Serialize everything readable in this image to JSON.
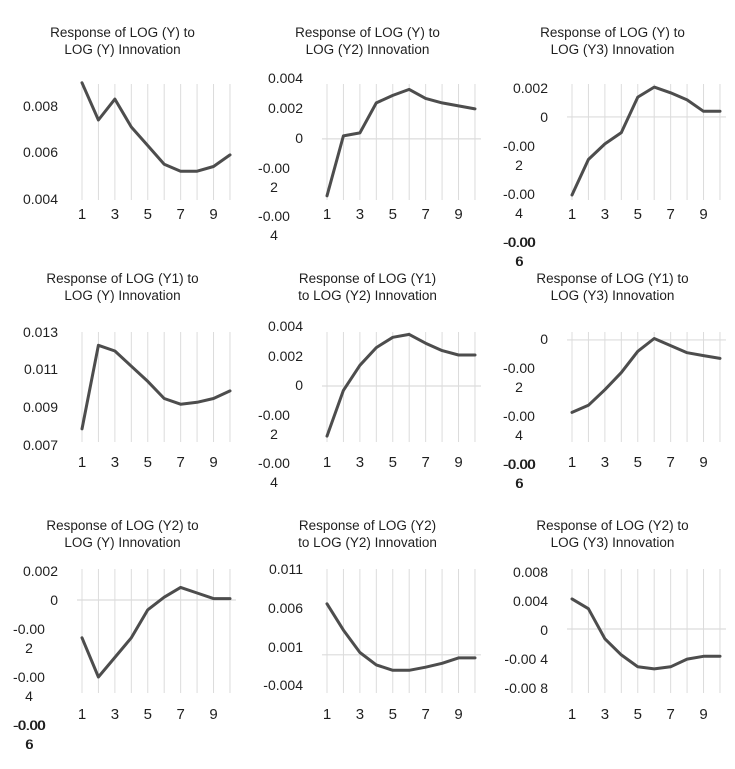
{
  "page": {
    "background": "#ffffff"
  },
  "style": {
    "line_color": "#4d4d4d",
    "grid_color": "#dcdcdc",
    "text_color": "#1f1f1f",
    "line_width": 3
  },
  "chart_data": [
    {
      "type": "line",
      "title": "Response of LOG (Y) to LOG (Y) Innovation",
      "title_display": "Response of LOG (Y) to\nLOG (Y) Innovation",
      "x": [
        1,
        2,
        3,
        4,
        5,
        6,
        7,
        8,
        9,
        10
      ],
      "values": [
        0.009,
        0.0074,
        0.0083,
        0.0071,
        0.0063,
        0.0055,
        0.0052,
        0.0052,
        0.0054,
        0.0059
      ],
      "ylim": [
        0.00396,
        0.00895
      ],
      "grid": "vertical",
      "x_tick_labels": [
        "1",
        "3",
        "5",
        "7",
        "9"
      ],
      "y_ticks": [
        {
          "display": "0.008",
          "value": 0.008
        },
        {
          "display": "0.006",
          "value": 0.006
        },
        {
          "display": "0.004",
          "value": 0.004
        }
      ]
    },
    {
      "type": "line",
      "title": "Response of LOG (Y) to LOG (Y2) Innovation",
      "title_display": "Response of LOG (Y) to\nLOG (Y2) Innovation",
      "x": [
        1,
        2,
        3,
        4,
        5,
        6,
        7,
        8,
        9,
        10
      ],
      "values": [
        -0.0038,
        0.0002,
        0.0004,
        0.0024,
        0.0029,
        0.0033,
        0.0027,
        0.0024,
        0.0022,
        0.002
      ],
      "ylim": [
        -0.00408,
        0.00366
      ],
      "grid": "vertical+zero",
      "x_tick_labels": [
        "1",
        "3",
        "5",
        "7",
        "9"
      ],
      "y_ticks": [
        {
          "display": "0.004",
          "value": 0.004
        },
        {
          "display": "0.002",
          "value": 0.002
        },
        {
          "display": "0",
          "value": 0
        },
        {
          "display": "-0.00\n2",
          "value": -0.002
        },
        {
          "display": "-0.00\n4",
          "value": -0.004
        }
      ]
    },
    {
      "type": "line",
      "title": "Response of LOG (Y) to LOG (Y3) Innovation",
      "title_display": "Response of LOG (Y) to\nLOG (Y3) Innovation",
      "x": [
        1,
        2,
        3,
        4,
        5,
        6,
        7,
        8,
        9,
        10
      ],
      "values": [
        -0.0055,
        -0.003,
        -0.0019,
        -0.0011,
        0.0014,
        0.0021,
        0.0017,
        0.0012,
        0.0004,
        0.0004
      ],
      "ylim": [
        -0.00585,
        0.00232
      ],
      "grid": "vertical+zero",
      "x_tick_labels": [
        "1",
        "3",
        "5",
        "7",
        "9"
      ],
      "y_ticks": [
        {
          "display": "0.002",
          "value": 0.002
        },
        {
          "display": "0",
          "value": 0
        },
        {
          "display": "-0.00\n2",
          "value": -0.002
        },
        {
          "display": "-0.00\n4",
          "value": -0.004
        },
        {
          "display": "-0.00\n6",
          "value": -0.006,
          "bold": true
        }
      ]
    },
    {
      "type": "line",
      "title": "Response of LOG (Y1) to LOG (Y) Innovation",
      "title_display": "Response of LOG (Y1) to\nLOG (Y) Innovation",
      "x": [
        1,
        2,
        3,
        4,
        5,
        6,
        7,
        8,
        9,
        10
      ],
      "values": [
        0.0079,
        0.0123,
        0.012,
        0.0112,
        0.0104,
        0.0095,
        0.0092,
        0.0093,
        0.0095,
        0.0099
      ],
      "ylim": [
        0.00721,
        0.013
      ],
      "grid": "vertical",
      "x_tick_labels": [
        "1",
        "3",
        "5",
        "7",
        "9"
      ],
      "y_ticks": [
        {
          "display": "0.013",
          "value": 0.013
        },
        {
          "display": "0.011",
          "value": 0.011
        },
        {
          "display": "0.009",
          "value": 0.009
        },
        {
          "display": "0.007",
          "value": 0.007
        }
      ]
    },
    {
      "type": "line",
      "title": "Response of LOG (Y1) to LOG (Y2) Innovation",
      "title_display": "Response of LOG (Y1)\nto LOG (Y2) Innovation",
      "x": [
        1,
        2,
        3,
        4,
        5,
        6,
        7,
        8,
        9,
        10
      ],
      "values": [
        -0.0034,
        -0.0003,
        0.0014,
        0.0026,
        0.0033,
        0.0035,
        0.0029,
        0.0024,
        0.0021,
        0.0021
      ],
      "ylim": [
        -0.0038,
        0.00366
      ],
      "grid": "vertical+zero",
      "x_tick_labels": [
        "1",
        "3",
        "5",
        "7",
        "9"
      ],
      "y_ticks": [
        {
          "display": "0.004",
          "value": 0.004
        },
        {
          "display": "0.002",
          "value": 0.002
        },
        {
          "display": "0",
          "value": 0
        },
        {
          "display": "-0.00\n2",
          "value": -0.002
        },
        {
          "display": "-0.00\n4",
          "value": -0.004
        }
      ]
    },
    {
      "type": "line",
      "title": "Response of LOG (Y1) to LOG (Y3) Innovation",
      "title_display": "Response of LOG (Y1) to\nLOG (Y3) Innovation",
      "x": [
        1,
        2,
        3,
        4,
        5,
        6,
        7,
        8,
        9,
        10
      ],
      "values": [
        -0.0051,
        -0.0046,
        -0.0035,
        -0.0023,
        -0.0008,
        0.0001,
        -0.0004,
        -0.0009,
        -0.0011,
        -0.0013
      ],
      "ylim": [
        -0.00718,
        0.00056
      ],
      "grid": "vertical+zero",
      "x_tick_labels": [
        "1",
        "3",
        "5",
        "7",
        "9"
      ],
      "y_ticks": [
        {
          "display": "0",
          "value": 0
        },
        {
          "display": "-0.00\n2",
          "value": -0.002
        },
        {
          "display": "-0.00\n4",
          "value": -0.004
        },
        {
          "display": "-0.00\n6",
          "value": -0.006,
          "bold": true
        }
      ]
    },
    {
      "type": "line",
      "title": "Response of LOG (Y2) to LOG (Y) Innovation",
      "title_display": "Response of LOG (Y2) to\nLOG (Y) Innovation",
      "x": [
        1,
        2,
        3,
        4,
        5,
        6,
        7,
        8,
        9,
        10
      ],
      "values": [
        -0.0027,
        -0.0055,
        -0.0041,
        -0.0027,
        -0.0007,
        0.0002,
        0.0009,
        0.0005,
        0.0001,
        0.0001
      ],
      "ylim": [
        -0.00664,
        0.00221
      ],
      "grid": "vertical+zero",
      "x_tick_labels": [
        "1",
        "3",
        "5",
        "7",
        "9"
      ],
      "y_ticks": [
        {
          "display": "0.002",
          "value": 0.002
        },
        {
          "display": "0",
          "value": 0
        },
        {
          "display": "-0.00\n2",
          "value": -0.002
        },
        {
          "display": "-0.00\n4",
          "value": -0.004
        },
        {
          "display": "-0.00\n6",
          "value": -0.006,
          "bold": true
        }
      ]
    },
    {
      "type": "line",
      "title": "Response of LOG (Y2) to LOG (Y2) Innovation",
      "title_display": "Response of LOG (Y2)\nto LOG (Y2) Innovation",
      "x": [
        1,
        2,
        3,
        4,
        5,
        6,
        7,
        8,
        9,
        10
      ],
      "values": [
        0.0066,
        0.0032,
        0.0003,
        -0.0013,
        -0.002,
        -0.002,
        -0.0016,
        -0.0011,
        -0.0004,
        -0.0004
      ],
      "ylim": [
        -0.00494,
        0.0111
      ],
      "grid": "vertical+zero",
      "x_tick_labels": [
        "1",
        "3",
        "5",
        "7",
        "9"
      ],
      "y_ticks": [
        {
          "display": "0.011",
          "value": 0.011
        },
        {
          "display": "0.006",
          "value": 0.006
        },
        {
          "display": "0.001",
          "value": 0.001
        },
        {
          "display": "-0.004",
          "value": -0.004
        }
      ]
    },
    {
      "type": "line",
      "title": "Response of LOG (Y2) to LOG (Y3) Innovation",
      "title_display": "Response of LOG (Y2) to\nLOG (Y3) Innovation",
      "x": [
        1,
        2,
        3,
        4,
        5,
        6,
        7,
        8,
        9,
        10
      ],
      "values": [
        0.0043,
        0.0029,
        -0.0014,
        -0.0037,
        -0.0054,
        -0.0057,
        -0.0054,
        -0.0043,
        -0.0039,
        -0.0039
      ],
      "ylim": [
        -0.00914,
        0.00857
      ],
      "grid": "vertical+zero",
      "x_tick_labels": [
        "1",
        "3",
        "5",
        "7",
        "9"
      ],
      "y_ticks": [
        {
          "display": "0.008",
          "value": 0.008
        },
        {
          "display": "0.004",
          "value": 0.004
        },
        {
          "display": "0",
          "value": 0
        },
        {
          "display": "-0.00 4",
          "value": -0.004
        },
        {
          "display": "-0.00 8",
          "value": -0.008
        }
      ]
    }
  ]
}
